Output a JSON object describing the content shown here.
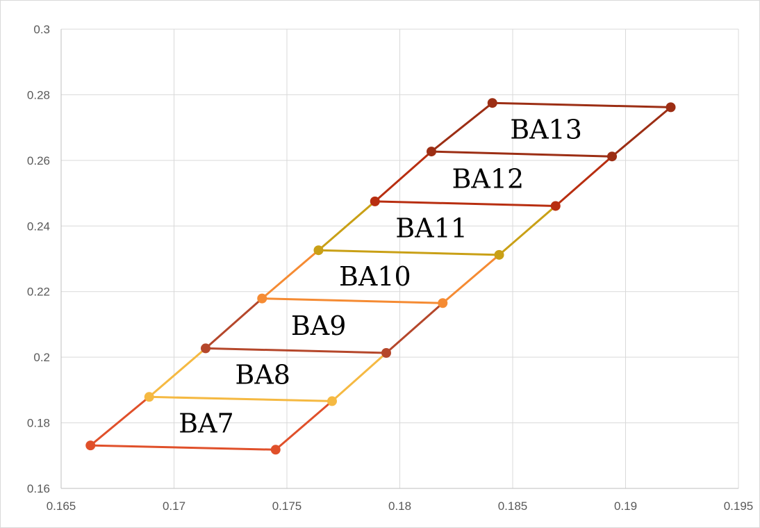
{
  "chart_data": {
    "type": "scatter",
    "title": "",
    "xlabel": "",
    "ylabel": "",
    "xlim": [
      0.165,
      0.195
    ],
    "ylim": [
      0.16,
      0.3
    ],
    "x_ticks": [
      "0.165",
      "0.17",
      "0.175",
      "0.18",
      "0.185",
      "0.19",
      "0.195"
    ],
    "y_ticks": [
      "0.16",
      "0.18",
      "0.2",
      "0.22",
      "0.24",
      "0.26",
      "0.28",
      "0.3"
    ],
    "grid": true,
    "legend": "none",
    "regions": [
      {
        "label": "BA7",
        "color": "#e0502a",
        "points": [
          [
            0.1663,
            0.1731
          ],
          [
            0.1745,
            0.1718
          ],
          [
            0.177,
            0.1866
          ],
          [
            0.1689,
            0.1879
          ]
        ]
      },
      {
        "label": "BA8",
        "color": "#f5b942",
        "points": [
          [
            0.1689,
            0.1879
          ],
          [
            0.177,
            0.1866
          ],
          [
            0.1794,
            0.2013
          ],
          [
            0.1714,
            0.2027
          ]
        ]
      },
      {
        "label": "BA9",
        "color": "#b5472b",
        "points": [
          [
            0.1714,
            0.2027
          ],
          [
            0.1794,
            0.2013
          ],
          [
            0.1819,
            0.2165
          ],
          [
            0.1739,
            0.2179
          ]
        ]
      },
      {
        "label": "BA10",
        "color": "#f58b33",
        "points": [
          [
            0.1739,
            0.2179
          ],
          [
            0.1819,
            0.2165
          ],
          [
            0.1844,
            0.2312
          ],
          [
            0.1764,
            0.2326
          ]
        ]
      },
      {
        "label": "BA11",
        "color": "#c9a016",
        "points": [
          [
            0.1764,
            0.2326
          ],
          [
            0.1844,
            0.2312
          ],
          [
            0.1869,
            0.2461
          ],
          [
            0.1789,
            0.2475
          ]
        ]
      },
      {
        "label": "BA12",
        "color": "#b82e10",
        "points": [
          [
            0.1789,
            0.2475
          ],
          [
            0.1869,
            0.2461
          ],
          [
            0.1894,
            0.2612
          ],
          [
            0.1814,
            0.2627
          ]
        ]
      },
      {
        "label": "BA13",
        "color": "#9c2e14",
        "points": [
          [
            0.1814,
            0.2627
          ],
          [
            0.1894,
            0.2612
          ],
          [
            0.192,
            0.2762
          ],
          [
            0.1841,
            0.2775
          ]
        ]
      }
    ]
  }
}
